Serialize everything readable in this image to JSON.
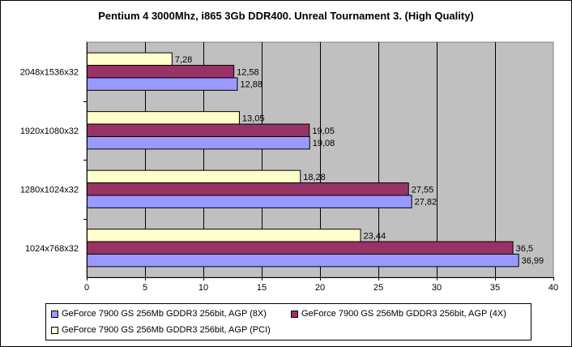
{
  "chart_data": {
    "type": "bar",
    "orientation": "horizontal",
    "title": "Pentium 4 3000Mhz, i865 3Gb DDR400. Unreal Tournament 3. (High Quality)",
    "categories": [
      "2048x1536x32",
      "1920x1080x32",
      "1280x1024x32",
      "1024x768x32"
    ],
    "series": [
      {
        "name": "GeForce 7900 GS 256Mb GDDR3 256bit, AGP (PCI)",
        "color": "#FFFFCC",
        "values": [
          7.28,
          13.05,
          18.28,
          23.44
        ],
        "labels": [
          "7,28",
          "13,05",
          "18,28",
          "23,44"
        ]
      },
      {
        "name": "GeForce 7900 GS 256Mb GDDR3 256bit, AGP (4X)",
        "color": "#993366",
        "values": [
          12.58,
          19.05,
          27.55,
          36.5
        ],
        "labels": [
          "12,58",
          "19,05",
          "27,55",
          "36,5"
        ]
      },
      {
        "name": "GeForce 7900 GS 256Mb GDDR3 256bit, AGP (8X)",
        "color": "#9999FF",
        "values": [
          12.88,
          19.08,
          27.82,
          36.99
        ],
        "labels": [
          "12,88",
          "19,08",
          "27,82",
          "36,99"
        ]
      }
    ],
    "xlim": [
      0,
      40
    ],
    "xticks": [
      0,
      5,
      10,
      15,
      20,
      25,
      30,
      35,
      40
    ],
    "grid": true,
    "plot_background": "#C0C0C0",
    "legend_position": "bottom"
  }
}
